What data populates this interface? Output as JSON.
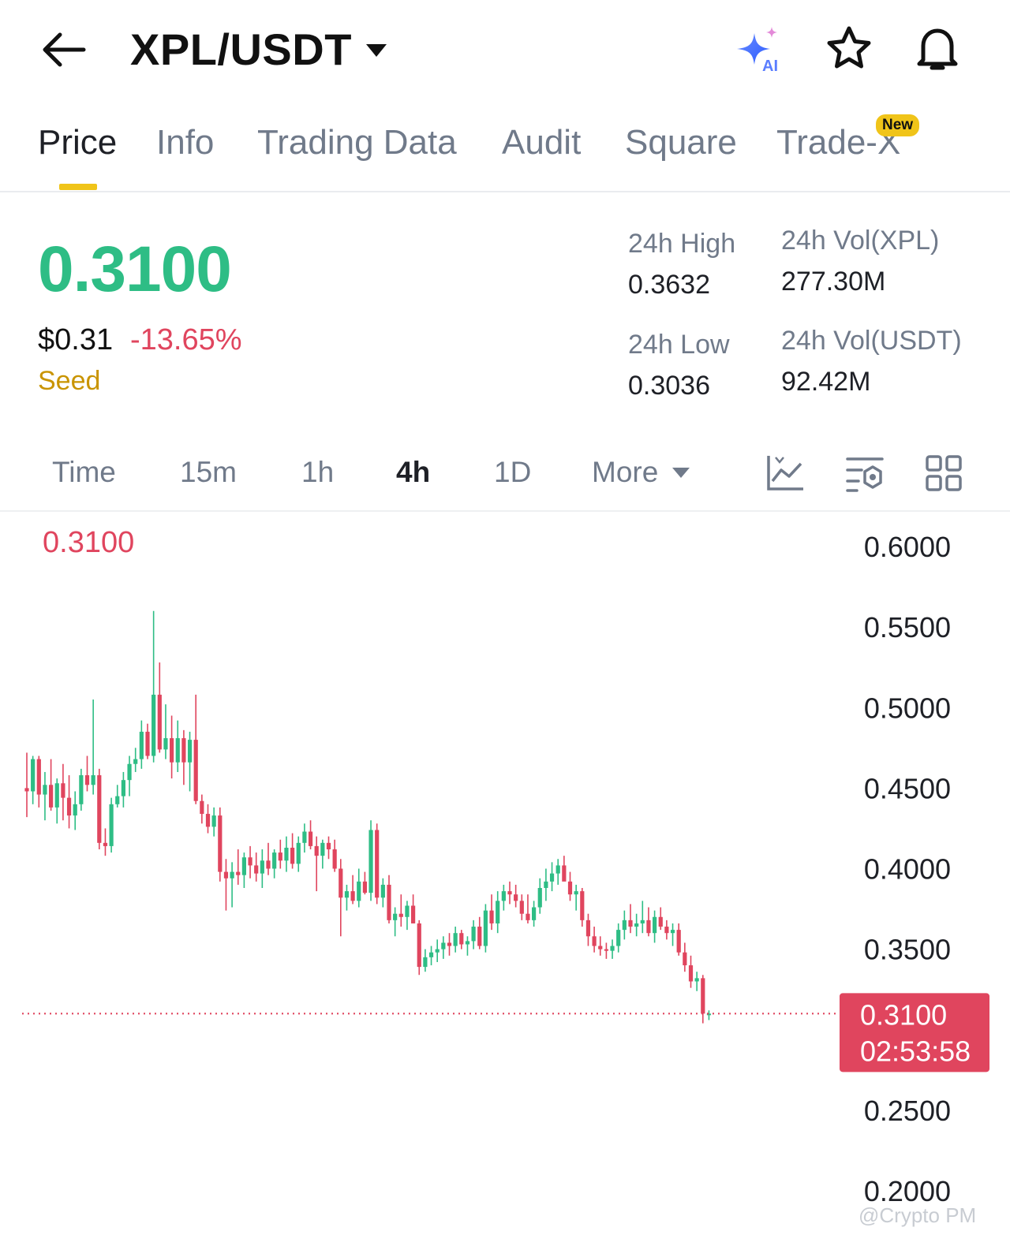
{
  "header": {
    "pair": "XPL/USDT",
    "icons": [
      "back-arrow-icon",
      "dropdown-caret-icon",
      "ai-sparkle-icon",
      "star-icon",
      "bell-icon"
    ],
    "ai_label": "AI"
  },
  "tabs": [
    {
      "label": "Price",
      "active": true
    },
    {
      "label": "Info"
    },
    {
      "label": "Trading Data"
    },
    {
      "label": "Audit"
    },
    {
      "label": "Square"
    },
    {
      "label": "Trade-X",
      "badge": "New"
    }
  ],
  "ticker": {
    "last_price": "0.3100",
    "usd_price": "$0.31",
    "change_pct": "-13.65%",
    "tag": "Seed",
    "high_label": "24h High",
    "high_value": "0.3632",
    "low_label": "24h Low",
    "low_value": "0.3036",
    "vol_base_label": "24h Vol(XPL)",
    "vol_base_value": "277.30M",
    "vol_quote_label": "24h Vol(USDT)",
    "vol_quote_value": "92.42M"
  },
  "intervals": [
    {
      "label": "Time"
    },
    {
      "label": "15m"
    },
    {
      "label": "1h"
    },
    {
      "label": "4h",
      "active": true
    },
    {
      "label": "1D"
    },
    {
      "label": "More"
    }
  ],
  "tools": [
    "line-chart-icon",
    "indicator-settings-icon",
    "grid-layout-icon"
  ],
  "colors": {
    "up": "#2ebd85",
    "down": "#e0455e",
    "accent": "#f0c419"
  },
  "watermark": "@Crypto PM",
  "chart_data": {
    "type": "candlestick",
    "interval": "4h",
    "last_price_label": "0.3100",
    "last_price": 0.31,
    "countdown": "02:53:58",
    "y_ticks": [
      "0.6000",
      "0.5500",
      "0.5000",
      "0.4500",
      "0.4000",
      "0.3500",
      "0.2500",
      "0.2000"
    ],
    "y_tick_values": [
      0.6,
      0.55,
      0.5,
      0.45,
      0.4,
      0.35,
      0.25,
      0.2
    ],
    "ylim": [
      0.185,
      0.62
    ],
    "candles": [
      [
        0.45,
        0.472,
        0.432,
        0.448
      ],
      [
        0.448,
        0.47,
        0.44,
        0.468
      ],
      [
        0.468,
        0.47,
        0.438,
        0.446
      ],
      [
        0.446,
        0.46,
        0.43,
        0.452
      ],
      [
        0.452,
        0.468,
        0.436,
        0.438
      ],
      [
        0.438,
        0.456,
        0.428,
        0.453
      ],
      [
        0.453,
        0.465,
        0.43,
        0.444
      ],
      [
        0.444,
        0.458,
        0.425,
        0.433
      ],
      [
        0.433,
        0.448,
        0.424,
        0.44
      ],
      [
        0.44,
        0.462,
        0.436,
        0.458
      ],
      [
        0.458,
        0.47,
        0.448,
        0.452
      ],
      [
        0.452,
        0.505,
        0.446,
        0.458
      ],
      [
        0.458,
        0.462,
        0.412,
        0.416
      ],
      [
        0.416,
        0.425,
        0.408,
        0.414
      ],
      [
        0.414,
        0.444,
        0.41,
        0.44
      ],
      [
        0.44,
        0.452,
        0.438,
        0.445
      ],
      [
        0.445,
        0.46,
        0.438,
        0.455
      ],
      [
        0.455,
        0.47,
        0.445,
        0.465
      ],
      [
        0.465,
        0.475,
        0.46,
        0.468
      ],
      [
        0.468,
        0.492,
        0.462,
        0.485
      ],
      [
        0.485,
        0.49,
        0.468,
        0.47
      ],
      [
        0.47,
        0.56,
        0.466,
        0.508
      ],
      [
        0.508,
        0.528,
        0.472,
        0.474
      ],
      [
        0.474,
        0.502,
        0.468,
        0.481
      ],
      [
        0.481,
        0.495,
        0.456,
        0.466
      ],
      [
        0.466,
        0.492,
        0.46,
        0.481
      ],
      [
        0.481,
        0.486,
        0.452,
        0.466
      ],
      [
        0.466,
        0.485,
        0.448,
        0.48
      ],
      [
        0.48,
        0.508,
        0.44,
        0.442
      ],
      [
        0.442,
        0.446,
        0.428,
        0.434
      ],
      [
        0.434,
        0.44,
        0.422,
        0.426
      ],
      [
        0.426,
        0.438,
        0.42,
        0.433
      ],
      [
        0.433,
        0.438,
        0.392,
        0.398
      ],
      [
        0.398,
        0.406,
        0.374,
        0.394
      ],
      [
        0.394,
        0.404,
        0.376,
        0.398
      ],
      [
        0.398,
        0.412,
        0.39,
        0.396
      ],
      [
        0.396,
        0.41,
        0.388,
        0.407
      ],
      [
        0.407,
        0.414,
        0.394,
        0.402
      ],
      [
        0.402,
        0.41,
        0.392,
        0.397
      ],
      [
        0.397,
        0.412,
        0.388,
        0.405
      ],
      [
        0.405,
        0.416,
        0.396,
        0.4
      ],
      [
        0.4,
        0.412,
        0.394,
        0.41
      ],
      [
        0.41,
        0.418,
        0.4,
        0.405
      ],
      [
        0.405,
        0.42,
        0.398,
        0.413
      ],
      [
        0.413,
        0.422,
        0.4,
        0.403
      ],
      [
        0.403,
        0.42,
        0.398,
        0.416
      ],
      [
        0.416,
        0.428,
        0.41,
        0.423
      ],
      [
        0.423,
        0.43,
        0.412,
        0.414
      ],
      [
        0.414,
        0.42,
        0.386,
        0.408
      ],
      [
        0.408,
        0.418,
        0.4,
        0.416
      ],
      [
        0.416,
        0.42,
        0.406,
        0.412
      ],
      [
        0.412,
        0.418,
        0.398,
        0.4
      ],
      [
        0.4,
        0.406,
        0.358,
        0.382
      ],
      [
        0.382,
        0.39,
        0.374,
        0.386
      ],
      [
        0.386,
        0.396,
        0.378,
        0.38
      ],
      [
        0.38,
        0.4,
        0.376,
        0.392
      ],
      [
        0.392,
        0.398,
        0.384,
        0.385
      ],
      [
        0.385,
        0.43,
        0.38,
        0.424
      ],
      [
        0.424,
        0.428,
        0.378,
        0.382
      ],
      [
        0.382,
        0.394,
        0.376,
        0.39
      ],
      [
        0.39,
        0.396,
        0.366,
        0.368
      ],
      [
        0.368,
        0.376,
        0.358,
        0.372
      ],
      [
        0.372,
        0.384,
        0.364,
        0.37
      ],
      [
        0.37,
        0.38,
        0.362,
        0.377
      ],
      [
        0.377,
        0.384,
        0.366,
        0.366
      ],
      [
        0.366,
        0.368,
        0.334,
        0.339
      ],
      [
        0.339,
        0.35,
        0.336,
        0.345
      ],
      [
        0.345,
        0.352,
        0.34,
        0.348
      ],
      [
        0.348,
        0.356,
        0.342,
        0.35
      ],
      [
        0.35,
        0.358,
        0.344,
        0.354
      ],
      [
        0.354,
        0.36,
        0.346,
        0.352
      ],
      [
        0.352,
        0.364,
        0.348,
        0.36
      ],
      [
        0.36,
        0.362,
        0.35,
        0.353
      ],
      [
        0.353,
        0.358,
        0.346,
        0.355
      ],
      [
        0.355,
        0.368,
        0.35,
        0.364
      ],
      [
        0.364,
        0.37,
        0.35,
        0.352
      ],
      [
        0.352,
        0.378,
        0.348,
        0.374
      ],
      [
        0.374,
        0.384,
        0.362,
        0.366
      ],
      [
        0.366,
        0.386,
        0.36,
        0.38
      ],
      [
        0.38,
        0.39,
        0.374,
        0.386
      ],
      [
        0.386,
        0.392,
        0.378,
        0.384
      ],
      [
        0.384,
        0.39,
        0.376,
        0.38
      ],
      [
        0.38,
        0.384,
        0.368,
        0.372
      ],
      [
        0.372,
        0.384,
        0.366,
        0.368
      ],
      [
        0.368,
        0.38,
        0.364,
        0.376
      ],
      [
        0.376,
        0.394,
        0.372,
        0.388
      ],
      [
        0.388,
        0.4,
        0.38,
        0.392
      ],
      [
        0.392,
        0.404,
        0.386,
        0.397
      ],
      [
        0.397,
        0.406,
        0.39,
        0.402
      ],
      [
        0.402,
        0.408,
        0.394,
        0.392
      ],
      [
        0.392,
        0.398,
        0.38,
        0.384
      ],
      [
        0.384,
        0.39,
        0.374,
        0.386
      ],
      [
        0.386,
        0.388,
        0.364,
        0.368
      ],
      [
        0.368,
        0.372,
        0.352,
        0.358
      ],
      [
        0.358,
        0.364,
        0.348,
        0.352
      ],
      [
        0.352,
        0.358,
        0.346,
        0.35
      ],
      [
        0.35,
        0.354,
        0.344,
        0.349
      ],
      [
        0.349,
        0.356,
        0.344,
        0.352
      ],
      [
        0.352,
        0.366,
        0.348,
        0.362
      ],
      [
        0.362,
        0.374,
        0.356,
        0.368
      ],
      [
        0.368,
        0.378,
        0.36,
        0.364
      ],
      [
        0.364,
        0.372,
        0.358,
        0.366
      ],
      [
        0.366,
        0.38,
        0.36,
        0.368
      ],
      [
        0.368,
        0.376,
        0.358,
        0.36
      ],
      [
        0.36,
        0.374,
        0.354,
        0.37
      ],
      [
        0.37,
        0.376,
        0.362,
        0.364
      ],
      [
        0.364,
        0.368,
        0.356,
        0.36
      ],
      [
        0.36,
        0.366,
        0.352,
        0.362
      ],
      [
        0.362,
        0.366,
        0.346,
        0.348
      ],
      [
        0.348,
        0.354,
        0.336,
        0.34
      ],
      [
        0.34,
        0.346,
        0.326,
        0.33
      ],
      [
        0.33,
        0.336,
        0.324,
        0.332
      ],
      [
        0.332,
        0.334,
        0.304,
        0.31
      ],
      [
        0.31,
        0.312,
        0.306,
        0.31
      ]
    ]
  }
}
